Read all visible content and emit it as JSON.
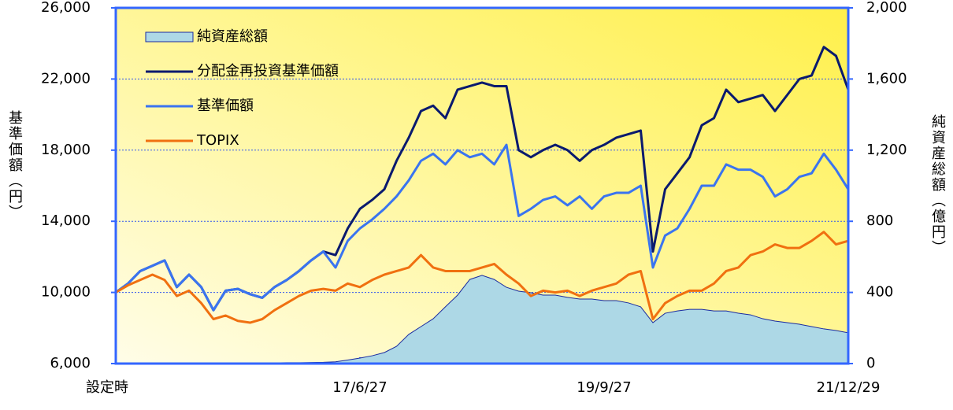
{
  "chart_data": {
    "type": "line",
    "y_label": "基準価額（円）",
    "y2_label": "純資産総額（億円）",
    "categories": [
      "設定時",
      null,
      null,
      null,
      null,
      null,
      null,
      null,
      null,
      null,
      null,
      null,
      null,
      null,
      null,
      null,
      null,
      null,
      null,
      null,
      "17/6/27",
      null,
      null,
      null,
      null,
      null,
      null,
      null,
      null,
      null,
      null,
      null,
      null,
      null,
      null,
      null,
      null,
      null,
      null,
      null,
      "19/9/27",
      null,
      null,
      null,
      null,
      null,
      null,
      null,
      null,
      null,
      null,
      null,
      null,
      null,
      null,
      null,
      null,
      null,
      null,
      null,
      "21/12/29"
    ],
    "ylim": [
      6000,
      26000
    ],
    "yticks": [
      {
        "value": 6000,
        "label": "6,000"
      },
      {
        "value": 10000,
        "label": "10,000"
      },
      {
        "value": 14000,
        "label": "14,000"
      },
      {
        "value": 18000,
        "label": "18,000"
      },
      {
        "value": 22000,
        "label": "22,000"
      },
      {
        "value": 26000,
        "label": "26,000"
      }
    ],
    "y2lim": [
      0,
      2000
    ],
    "y2ticks": [
      0,
      400,
      800,
      {
        "value": 1200,
        "label": "1,200"
      },
      {
        "value": 1600,
        "label": "1,600"
      },
      {
        "value": 2000,
        "label": "2,000"
      }
    ],
    "grid": true,
    "legend": "upper left",
    "series": [
      {
        "name": "純資産総額",
        "color": "#add8e6",
        "style": "area",
        "axis": "y2",
        "values": [
          0,
          1,
          1,
          1,
          2,
          2,
          2,
          2,
          3,
          3,
          3,
          3,
          4,
          4,
          5,
          5,
          6,
          7,
          10,
          20,
          31,
          44,
          62,
          97,
          164,
          208,
          252,
          319,
          385,
          473,
          496,
          473,
          429,
          407,
          398,
          385,
          385,
          372,
          363,
          363,
          354,
          354,
          341,
          319,
          230,
          283,
          296,
          305,
          305,
          296,
          296,
          283,
          274,
          252,
          239,
          230,
          221,
          208,
          195,
          186,
          173
        ]
      },
      {
        "name": "分配金再投資基準価額",
        "color": "#0a1a6e",
        "style": "line",
        "values": [
          10000,
          10500,
          11200,
          11500,
          11800,
          10300,
          11000,
          10300,
          9000,
          10100,
          10200,
          9900,
          9700,
          10300,
          10700,
          11200,
          11800,
          12300,
          12100,
          13600,
          14700,
          15200,
          15800,
          17400,
          18700,
          20200,
          20500,
          19800,
          21400,
          21600,
          21800,
          21600,
          21600,
          18000,
          17600,
          18000,
          18300,
          18000,
          17400,
          18000,
          18300,
          18700,
          18900,
          19100,
          12300,
          15800,
          16700,
          17600,
          19400,
          19800,
          21400,
          20700,
          20900,
          21100,
          20200,
          21100,
          22000,
          22200,
          23800,
          23300,
          21400
        ]
      },
      {
        "name": "基準価額",
        "color": "#3a74f0",
        "style": "line",
        "values": [
          10000,
          10500,
          11200,
          11500,
          11800,
          10300,
          11000,
          10300,
          9000,
          10100,
          10200,
          9900,
          9700,
          10300,
          10700,
          11200,
          11800,
          12300,
          11400,
          12900,
          13600,
          14100,
          14700,
          15400,
          16300,
          17400,
          17800,
          17200,
          18000,
          17600,
          17800,
          17200,
          18300,
          14300,
          14700,
          15200,
          15400,
          14900,
          15400,
          14700,
          15400,
          15600,
          15600,
          16000,
          11400,
          13200,
          13600,
          14700,
          16000,
          16000,
          17200,
          16900,
          16900,
          16500,
          15400,
          15800,
          16500,
          16700,
          17800,
          16900,
          15800
        ]
      },
      {
        "name": "TOPIX",
        "color": "#f07010",
        "style": "line",
        "values": [
          10000,
          10400,
          10700,
          11000,
          10700,
          9800,
          10100,
          9400,
          8500,
          8700,
          8400,
          8300,
          8500,
          9000,
          9400,
          9800,
          10100,
          10200,
          10100,
          10500,
          10300,
          10700,
          11000,
          11200,
          11400,
          12100,
          11400,
          11200,
          11200,
          11200,
          11400,
          11600,
          11000,
          10500,
          9800,
          10100,
          10000,
          10100,
          9800,
          10100,
          10300,
          10500,
          11000,
          11200,
          8500,
          9400,
          9800,
          10100,
          10100,
          10500,
          11200,
          11400,
          12100,
          12300,
          12700,
          12500,
          12500,
          12900,
          13400,
          12700,
          12900
        ]
      }
    ]
  }
}
